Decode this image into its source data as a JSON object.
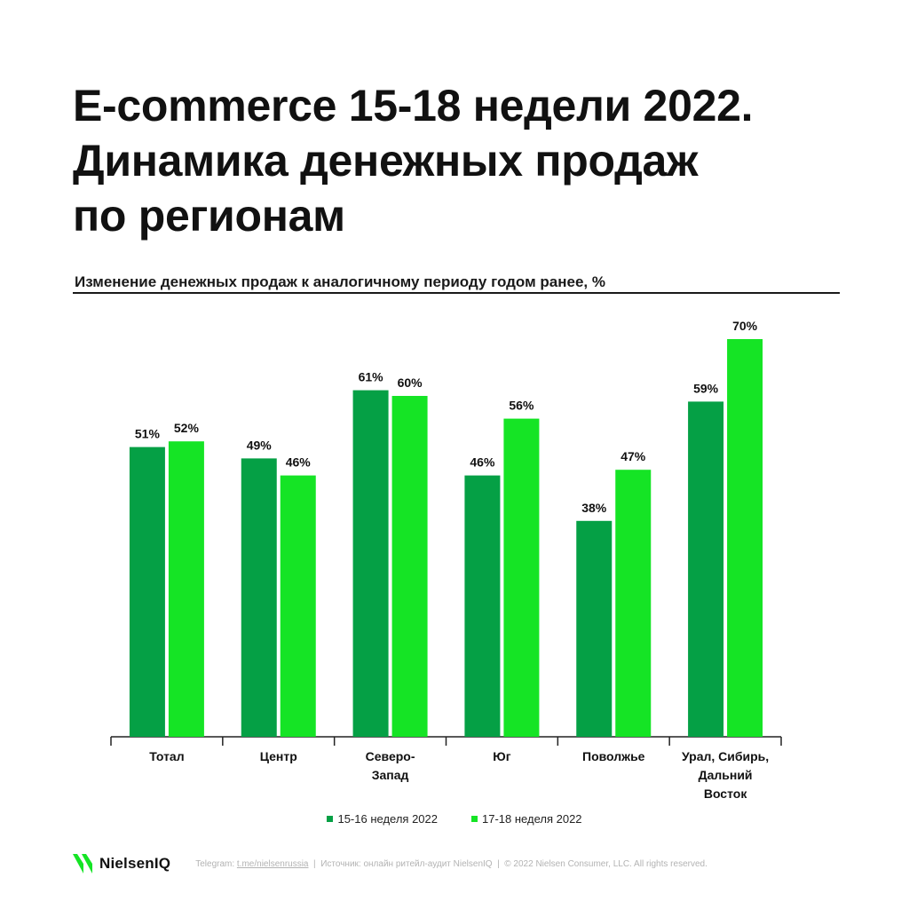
{
  "title_lines": [
    "E-commerce 15-18 недели 2022.",
    "Динамика денежных продаж",
    "по регионам"
  ],
  "subtitle": "Изменение денежных продаж к аналогичному периоду годом ранее, %",
  "colors": {
    "series1": "#05a045",
    "series2": "#15e425",
    "text": "#111111"
  },
  "chart_data": {
    "type": "bar",
    "categories": [
      [
        "Тотал"
      ],
      [
        "Центр"
      ],
      [
        "Северо-",
        "Запад"
      ],
      [
        "Юг"
      ],
      [
        "Поволжье"
      ],
      [
        "Урал, Сибирь,",
        "Дальний",
        "Восток"
      ]
    ],
    "series": [
      {
        "name": "15-16 неделя 2022",
        "values": [
          51,
          49,
          61,
          46,
          38,
          59
        ],
        "labels": [
          "51%",
          "49%",
          "61%",
          "46%",
          "38%",
          "59%"
        ]
      },
      {
        "name": "17-18 неделя 2022",
        "values": [
          52,
          46,
          60,
          56,
          47,
          70
        ],
        "labels": [
          "52%",
          "46%",
          "60%",
          "56%",
          "47%",
          "70%"
        ]
      }
    ],
    "ylim": [
      0,
      70
    ],
    "grid": false,
    "legend_position": "bottom-center"
  },
  "footer": {
    "logo_text": "NielsenIQ",
    "telegram_label": "Telegram: ",
    "telegram_link": "t.me/nielsenrussia",
    "rest": "  |  Источник: онлайн ритейл-аудит NielsenIQ  |  © 2022 Nielsen Consumer, LLC. All rights reserved."
  }
}
